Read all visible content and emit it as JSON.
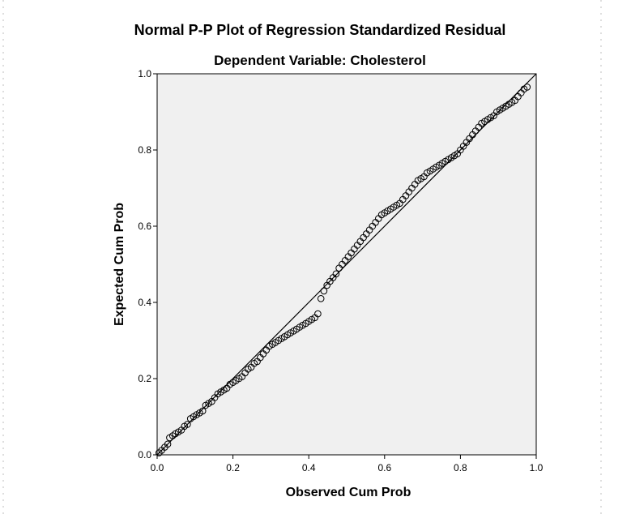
{
  "chart_data": {
    "type": "scatter",
    "title": "Normal P-P Plot of Regression Standardized Residual",
    "subtitle": "Dependent Variable: Cholesterol",
    "xlabel": "Observed Cum Prob",
    "ylabel": "Expected Cum Prob",
    "xlim": [
      0,
      1
    ],
    "ylim": [
      0,
      1
    ],
    "xticks": [
      "0.0",
      "0.2",
      "0.4",
      "0.6",
      "0.8",
      "1.0"
    ],
    "yticks": [
      "0.0",
      "0.2",
      "0.4",
      "0.6",
      "0.8",
      "1.0"
    ],
    "grid": false,
    "reference_line": [
      [
        0,
        0
      ],
      [
        1,
        1
      ]
    ],
    "colors": {
      "plot_background": "#f0f0f0",
      "marker": "#000000",
      "line": "#000000"
    },
    "points": [
      [
        0.005,
        0.005
      ],
      [
        0.012,
        0.012
      ],
      [
        0.02,
        0.02
      ],
      [
        0.028,
        0.028
      ],
      [
        0.033,
        0.045
      ],
      [
        0.041,
        0.05
      ],
      [
        0.048,
        0.055
      ],
      [
        0.056,
        0.06
      ],
      [
        0.064,
        0.065
      ],
      [
        0.072,
        0.075
      ],
      [
        0.08,
        0.08
      ],
      [
        0.088,
        0.095
      ],
      [
        0.096,
        0.1
      ],
      [
        0.104,
        0.105
      ],
      [
        0.112,
        0.11
      ],
      [
        0.12,
        0.115
      ],
      [
        0.128,
        0.13
      ],
      [
        0.136,
        0.135
      ],
      [
        0.144,
        0.14
      ],
      [
        0.152,
        0.15
      ],
      [
        0.16,
        0.16
      ],
      [
        0.168,
        0.165
      ],
      [
        0.176,
        0.17
      ],
      [
        0.184,
        0.175
      ],
      [
        0.192,
        0.185
      ],
      [
        0.2,
        0.19
      ],
      [
        0.208,
        0.195
      ],
      [
        0.216,
        0.2
      ],
      [
        0.224,
        0.205
      ],
      [
        0.232,
        0.215
      ],
      [
        0.24,
        0.225
      ],
      [
        0.248,
        0.23
      ],
      [
        0.256,
        0.24
      ],
      [
        0.264,
        0.245
      ],
      [
        0.272,
        0.255
      ],
      [
        0.28,
        0.265
      ],
      [
        0.288,
        0.275
      ],
      [
        0.296,
        0.285
      ],
      [
        0.304,
        0.29
      ],
      [
        0.312,
        0.295
      ],
      [
        0.32,
        0.3
      ],
      [
        0.328,
        0.305
      ],
      [
        0.336,
        0.31
      ],
      [
        0.344,
        0.315
      ],
      [
        0.352,
        0.32
      ],
      [
        0.36,
        0.325
      ],
      [
        0.368,
        0.33
      ],
      [
        0.376,
        0.335
      ],
      [
        0.384,
        0.34
      ],
      [
        0.392,
        0.345
      ],
      [
        0.4,
        0.35
      ],
      [
        0.408,
        0.355
      ],
      [
        0.416,
        0.36
      ],
      [
        0.424,
        0.37
      ],
      [
        0.432,
        0.41
      ],
      [
        0.44,
        0.43
      ],
      [
        0.448,
        0.445
      ],
      [
        0.456,
        0.455
      ],
      [
        0.464,
        0.465
      ],
      [
        0.472,
        0.475
      ],
      [
        0.48,
        0.49
      ],
      [
        0.488,
        0.5
      ],
      [
        0.496,
        0.51
      ],
      [
        0.504,
        0.52
      ],
      [
        0.512,
        0.53
      ],
      [
        0.52,
        0.54
      ],
      [
        0.528,
        0.55
      ],
      [
        0.536,
        0.56
      ],
      [
        0.544,
        0.57
      ],
      [
        0.552,
        0.58
      ],
      [
        0.56,
        0.59
      ],
      [
        0.568,
        0.6
      ],
      [
        0.576,
        0.61
      ],
      [
        0.584,
        0.62
      ],
      [
        0.592,
        0.63
      ],
      [
        0.6,
        0.635
      ],
      [
        0.608,
        0.64
      ],
      [
        0.616,
        0.645
      ],
      [
        0.624,
        0.65
      ],
      [
        0.632,
        0.655
      ],
      [
        0.64,
        0.66
      ],
      [
        0.648,
        0.67
      ],
      [
        0.656,
        0.68
      ],
      [
        0.664,
        0.69
      ],
      [
        0.672,
        0.7
      ],
      [
        0.68,
        0.71
      ],
      [
        0.688,
        0.72
      ],
      [
        0.696,
        0.725
      ],
      [
        0.704,
        0.73
      ],
      [
        0.712,
        0.74
      ],
      [
        0.72,
        0.745
      ],
      [
        0.728,
        0.75
      ],
      [
        0.736,
        0.755
      ],
      [
        0.744,
        0.76
      ],
      [
        0.752,
        0.765
      ],
      [
        0.76,
        0.77
      ],
      [
        0.768,
        0.775
      ],
      [
        0.776,
        0.78
      ],
      [
        0.784,
        0.785
      ],
      [
        0.792,
        0.79
      ],
      [
        0.8,
        0.8
      ],
      [
        0.808,
        0.81
      ],
      [
        0.816,
        0.82
      ],
      [
        0.824,
        0.83
      ],
      [
        0.832,
        0.84
      ],
      [
        0.84,
        0.85
      ],
      [
        0.848,
        0.86
      ],
      [
        0.856,
        0.87
      ],
      [
        0.864,
        0.875
      ],
      [
        0.872,
        0.88
      ],
      [
        0.88,
        0.885
      ],
      [
        0.888,
        0.89
      ],
      [
        0.896,
        0.9
      ],
      [
        0.904,
        0.905
      ],
      [
        0.912,
        0.91
      ],
      [
        0.92,
        0.915
      ],
      [
        0.928,
        0.92
      ],
      [
        0.936,
        0.925
      ],
      [
        0.944,
        0.93
      ],
      [
        0.952,
        0.94
      ],
      [
        0.96,
        0.95
      ],
      [
        0.968,
        0.96
      ],
      [
        0.976,
        0.965
      ]
    ]
  }
}
